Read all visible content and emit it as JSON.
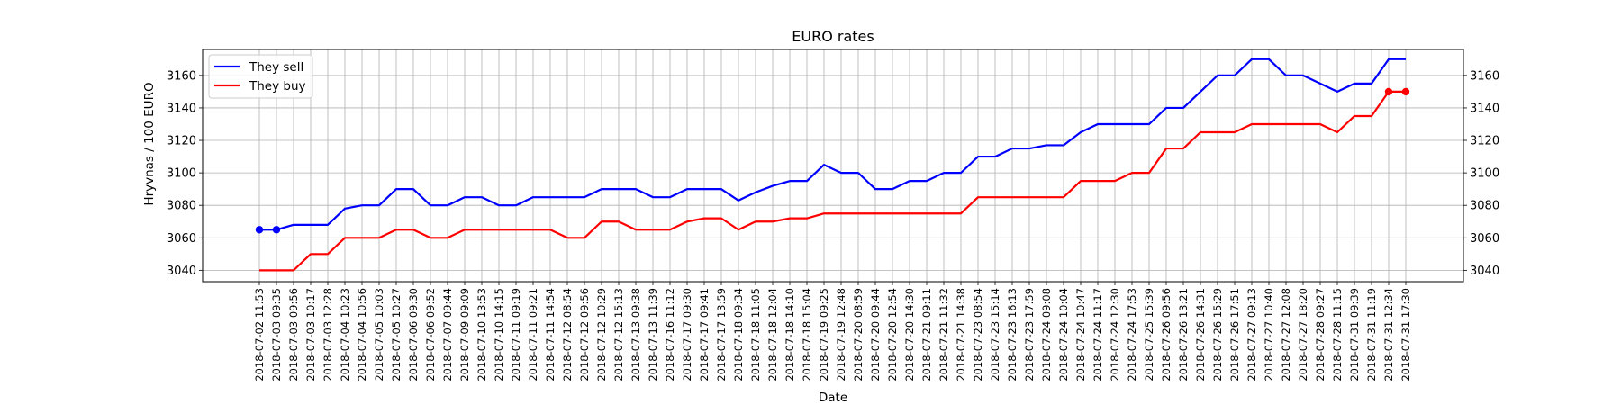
{
  "chart_data": {
    "type": "line",
    "title": "EURO rates",
    "xlabel": "Date",
    "ylabel": "Hryvnas / 100 EURO",
    "ylim": [
      3033,
      3176
    ],
    "yticks": [
      3040,
      3060,
      3080,
      3100,
      3120,
      3140,
      3160
    ],
    "grid": true,
    "legend_position": "upper-left",
    "x": [
      "2018-07-02 11:53",
      "2018-07-03 09:35",
      "2018-07-03 09:56",
      "2018-07-03 10:17",
      "2018-07-03 12:28",
      "2018-07-04 10:23",
      "2018-07-04 10:56",
      "2018-07-05 10:03",
      "2018-07-05 10:27",
      "2018-07-06 09:30",
      "2018-07-06 09:52",
      "2018-07-07 09:44",
      "2018-07-09 09:09",
      "2018-07-10 13:53",
      "2018-07-10 14:15",
      "2018-07-11 09:19",
      "2018-07-11 09:21",
      "2018-07-11 14:54",
      "2018-07-12 08:54",
      "2018-07-12 09:56",
      "2018-07-12 10:29",
      "2018-07-12 15:13",
      "2018-07-13 09:38",
      "2018-07-13 11:39",
      "2018-07-16 11:12",
      "2018-07-17 09:30",
      "2018-07-17 09:41",
      "2018-07-17 13:59",
      "2018-07-18 09:34",
      "2018-07-18 11:05",
      "2018-07-18 12:04",
      "2018-07-18 14:10",
      "2018-07-18 15:04",
      "2018-07-19 09:25",
      "2018-07-19 12:48",
      "2018-07-20 08:59",
      "2018-07-20 09:44",
      "2018-07-20 12:54",
      "2018-07-20 14:30",
      "2018-07-21 09:11",
      "2018-07-21 11:32",
      "2018-07-21 14:38",
      "2018-07-23 08:54",
      "2018-07-23 15:14",
      "2018-07-23 16:13",
      "2018-07-23 17:59",
      "2018-07-24 09:08",
      "2018-07-24 10:04",
      "2018-07-24 10:47",
      "2018-07-24 11:17",
      "2018-07-24 12:30",
      "2018-07-24 17:53",
      "2018-07-25 15:39",
      "2018-07-26 09:56",
      "2018-07-26 13:21",
      "2018-07-26 14:31",
      "2018-07-26 15:29",
      "2018-07-26 17:51",
      "2018-07-27 09:13",
      "2018-07-27 10:40",
      "2018-07-27 12:08",
      "2018-07-27 18:20",
      "2018-07-28 09:27",
      "2018-07-28 11:15",
      "2018-07-31 09:39",
      "2018-07-31 11:19",
      "2018-07-31 12:34",
      "2018-07-31 17:30"
    ],
    "series": [
      {
        "name": "They sell",
        "color": "#0000ff",
        "marker_indices": [
          0,
          1
        ],
        "values": [
          3065,
          3065,
          3068,
          3068,
          3068,
          3078,
          3080,
          3080,
          3090,
          3090,
          3080,
          3080,
          3085,
          3085,
          3080,
          3080,
          3085,
          3085,
          3085,
          3085,
          3090,
          3090,
          3090,
          3085,
          3085,
          3090,
          3090,
          3090,
          3083,
          3088,
          3092,
          3095,
          3095,
          3105,
          3100,
          3100,
          3090,
          3090,
          3095,
          3095,
          3100,
          3100,
          3110,
          3110,
          3115,
          3115,
          3117,
          3117,
          3125,
          3130,
          3130,
          3130,
          3130,
          3140,
          3140,
          3150,
          3160,
          3160,
          3170,
          3170,
          3160,
          3160,
          3155,
          3150,
          3155,
          3155,
          3170,
          3170
        ]
      },
      {
        "name": "They buy",
        "color": "#ff0000",
        "marker_indices": [
          66,
          67
        ],
        "values": [
          3040,
          3040,
          3040,
          3050,
          3050,
          3060,
          3060,
          3060,
          3065,
          3065,
          3060,
          3060,
          3065,
          3065,
          3065,
          3065,
          3065,
          3065,
          3060,
          3060,
          3070,
          3070,
          3065,
          3065,
          3065,
          3070,
          3072,
          3072,
          3065,
          3070,
          3070,
          3072,
          3072,
          3075,
          3075,
          3075,
          3075,
          3075,
          3075,
          3075,
          3075,
          3075,
          3085,
          3085,
          3085,
          3085,
          3085,
          3085,
          3095,
          3095,
          3095,
          3100,
          3100,
          3115,
          3115,
          3125,
          3125,
          3125,
          3130,
          3130,
          3130,
          3130,
          3130,
          3125,
          3135,
          3135,
          3150,
          3150
        ]
      }
    ]
  }
}
